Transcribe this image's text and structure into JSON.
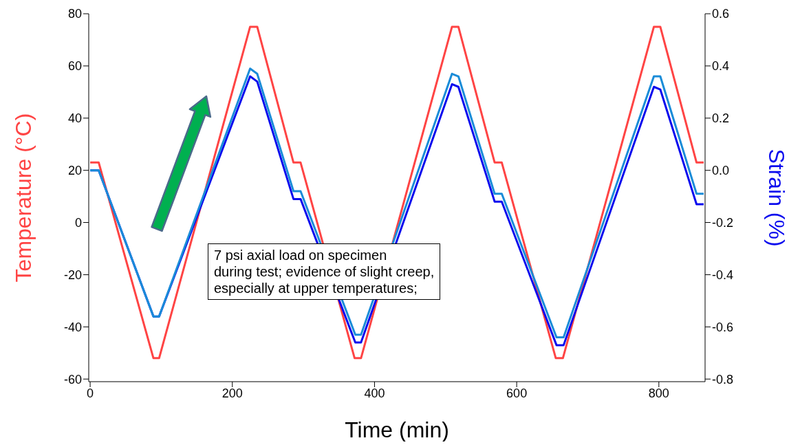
{
  "chart_data": {
    "type": "line",
    "xlabel": "Time (min)",
    "ylabel": "Temperature (°C)",
    "y2label": "Strain (%)",
    "xlim": [
      -2,
      865
    ],
    "xticks": [
      0,
      200,
      400,
      600,
      800
    ],
    "ylim": [
      -61,
      80
    ],
    "yticks": [
      -60,
      -40,
      -20,
      0,
      20,
      40,
      60,
      80
    ],
    "y2lim": [
      -0.81,
      0.6
    ],
    "y2ticks": [
      -0.8,
      -0.6,
      -0.4,
      -0.2,
      {
        "value": 0,
        "label": "0.0"
      },
      0.2,
      0.4,
      0.6
    ],
    "line_style": "solid",
    "annotations": [
      "7 psi axial load on specimen\nduring test; evidence of slight creep,\nespecially at upper temperatures;"
    ],
    "series": [
      {
        "color": "#ff4444",
        "x": [
          0,
          12,
          89,
          97,
          225,
          235,
          286,
          296,
          372,
          381,
          509,
          518,
          569,
          579,
          655,
          665,
          793,
          802,
          853,
          863
        ],
        "values": [
          23,
          23,
          -52,
          -52,
          75,
          75,
          23,
          23,
          -52,
          -52,
          75,
          75,
          23,
          23,
          -52,
          -52,
          75,
          75,
          23,
          23
        ]
      },
      {
        "color": "#0a0aee",
        "axis": "y2",
        "x": [
          0,
          12,
          89,
          97,
          225,
          235,
          286,
          296,
          373,
          381,
          509,
          518,
          569,
          579,
          656,
          666,
          793,
          802,
          853,
          863
        ],
        "values": [
          0.0,
          0.0,
          -0.56,
          -0.56,
          0.36,
          0.34,
          -0.11,
          -0.11,
          -0.66,
          -0.66,
          0.33,
          0.32,
          -0.12,
          -0.12,
          -0.67,
          -0.67,
          0.32,
          0.31,
          -0.13,
          -0.13
        ]
      },
      {
        "color": "#1a8cd8",
        "axis": "y2",
        "x": [
          0,
          12,
          89,
          97,
          225,
          235,
          286,
          296,
          373,
          381,
          509,
          518,
          569,
          579,
          656,
          666,
          793,
          802,
          853,
          863
        ],
        "values": [
          0.0,
          0.0,
          -0.56,
          -0.56,
          0.39,
          0.37,
          -0.08,
          -0.08,
          -0.63,
          -0.63,
          0.37,
          0.36,
          -0.09,
          -0.09,
          -0.64,
          -0.64,
          0.36,
          0.36,
          -0.09,
          -0.09
        ]
      }
    ]
  }
}
